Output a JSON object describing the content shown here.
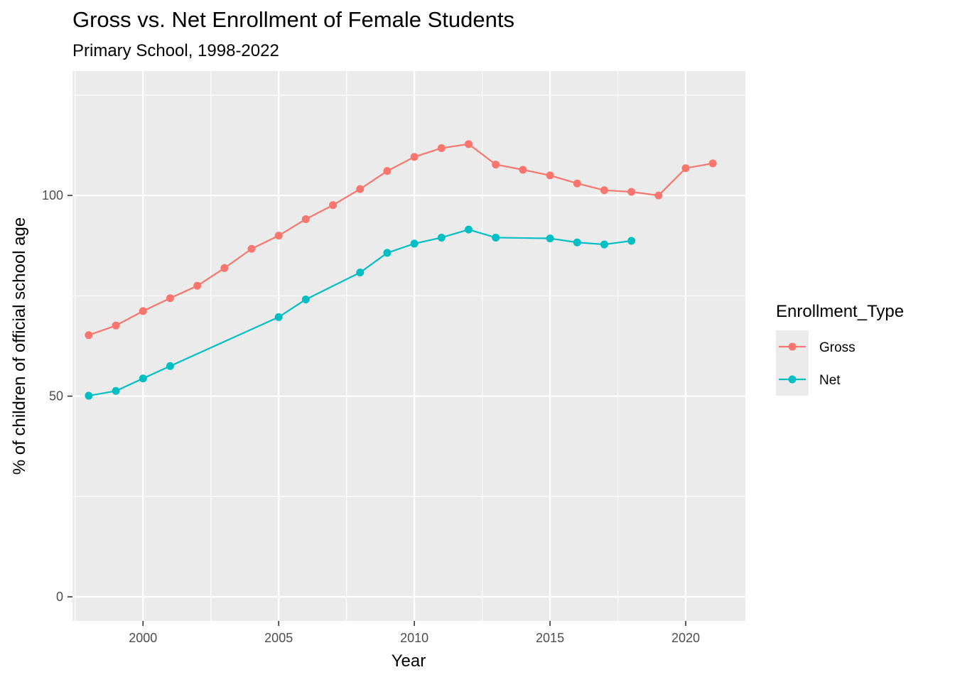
{
  "chart_data": {
    "type": "line",
    "title": "Gross vs. Net Enrollment of Female Students",
    "subtitle": "Primary School, 1998-2022",
    "xlabel": "Year",
    "ylabel": "% of children of official school age",
    "xlim": [
      1997.4,
      2022.2
    ],
    "ylim": [
      -6,
      131
    ],
    "x_ticks": [
      2000,
      2005,
      2010,
      2015,
      2020
    ],
    "y_ticks": [
      0,
      50,
      100
    ],
    "grid": true,
    "legend": {
      "title": "Enrollment_Type",
      "placement": "right"
    },
    "series": [
      {
        "name": "Gross",
        "color": "#F8766D",
        "x": [
          1998,
          1999,
          2000,
          2001,
          2002,
          2003,
          2004,
          2005,
          2006,
          2007,
          2008,
          2009,
          2010,
          2011,
          2012,
          2013,
          2014,
          2015,
          2016,
          2017,
          2018,
          2019,
          2020,
          2021
        ],
        "y": [
          65.2,
          67.6,
          71.2,
          74.4,
          77.5,
          81.9,
          86.7,
          90.0,
          94.1,
          97.6,
          101.6,
          106.1,
          109.6,
          111.8,
          112.8,
          107.7,
          106.4,
          105.0,
          103.0,
          101.3,
          100.9,
          100.0,
          106.8,
          108.0
        ]
      },
      {
        "name": "Net",
        "color": "#00BFC4",
        "x": [
          1998,
          1999,
          2000,
          2001,
          2005,
          2006,
          2008,
          2009,
          2010,
          2011,
          2012,
          2013,
          2015,
          2016,
          2017,
          2018
        ],
        "y": [
          50.1,
          51.3,
          54.4,
          57.5,
          69.7,
          74.1,
          80.8,
          85.7,
          88.0,
          89.5,
          91.5,
          89.5,
          89.3,
          88.3,
          87.8,
          88.7
        ]
      }
    ]
  }
}
